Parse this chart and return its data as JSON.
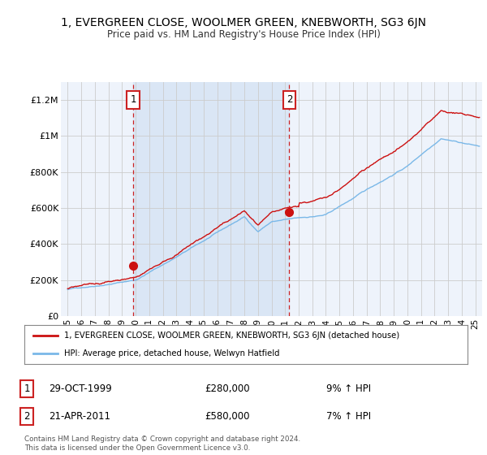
{
  "title": "1, EVERGREEN CLOSE, WOOLMER GREEN, KNEBWORTH, SG3 6JN",
  "subtitle": "Price paid vs. HM Land Registry's House Price Index (HPI)",
  "ylabel_ticks": [
    "£0",
    "£200K",
    "£400K",
    "£600K",
    "£800K",
    "£1M",
    "£1.2M"
  ],
  "ytick_values": [
    0,
    200000,
    400000,
    600000,
    800000,
    1000000,
    1200000
  ],
  "ylim": [
    0,
    1300000
  ],
  "xlim_start": 1994.5,
  "xlim_end": 2025.5,
  "sale1_date": 1999.83,
  "sale1_price": 280000,
  "sale1_label": "1",
  "sale1_pct": "9% ↑ HPI",
  "sale1_date_str": "29-OCT-1999",
  "sale2_date": 2011.31,
  "sale2_price": 580000,
  "sale2_label": "2",
  "sale2_pct": "7% ↑ HPI",
  "sale2_date_str": "21-APR-2011",
  "legend_line1": "1, EVERGREEN CLOSE, WOOLMER GREEN, KNEBWORTH, SG3 6JN (detached house)",
  "legend_line2": "HPI: Average price, detached house, Welwyn Hatfield",
  "footer": "Contains HM Land Registry data © Crown copyright and database right 2024.\nThis data is licensed under the Open Government Licence v3.0.",
  "bg_color": "#eef3fb",
  "shade_color": "#dae6f5",
  "hpi_color": "#7ab8e8",
  "price_color": "#cc1111",
  "vline_color": "#cc2222",
  "grid_color": "#cccccc",
  "white": "#ffffff",
  "xtick_years": [
    1995,
    1996,
    1997,
    1998,
    1999,
    2000,
    2001,
    2002,
    2003,
    2004,
    2005,
    2006,
    2007,
    2008,
    2009,
    2010,
    2011,
    2012,
    2013,
    2014,
    2015,
    2016,
    2017,
    2018,
    2019,
    2020,
    2021,
    2022,
    2023,
    2024,
    2025
  ]
}
